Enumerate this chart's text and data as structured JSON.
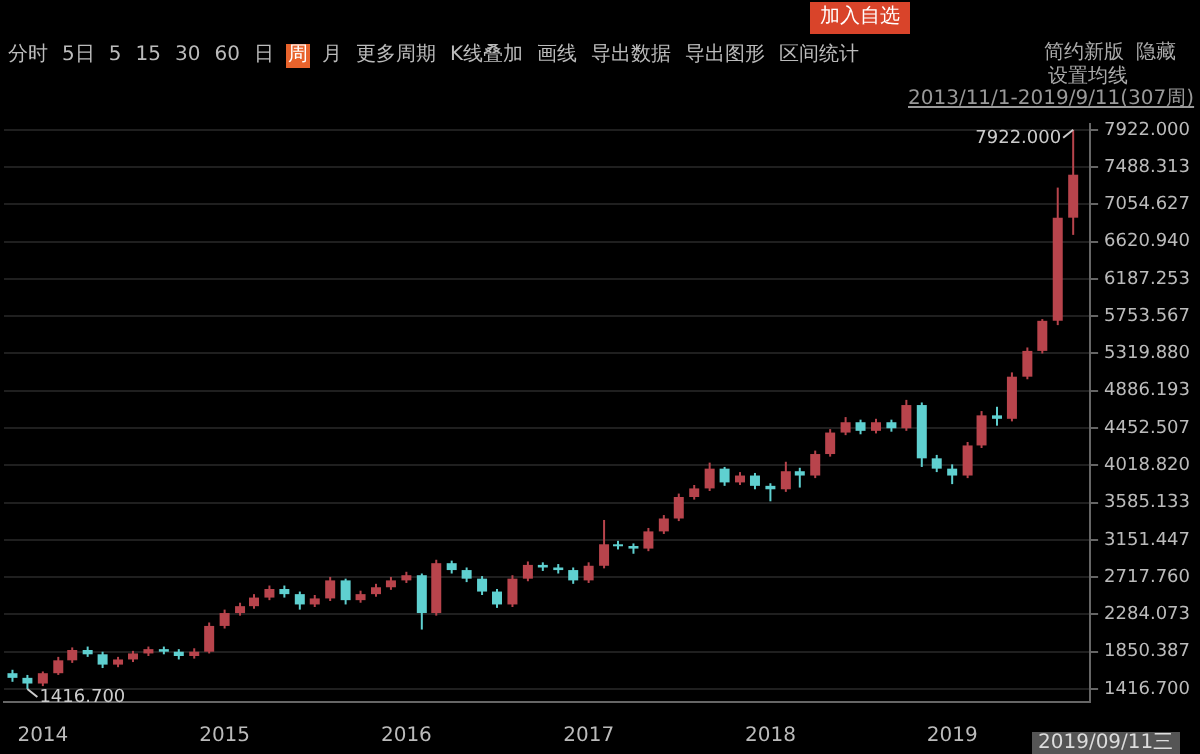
{
  "chart_data": {
    "type": "candlestick",
    "x": [
      "2013-11",
      "2013-12",
      "2014-01",
      "2014-02",
      "2014-03",
      "2014-04",
      "2014-05",
      "2014-06",
      "2014-07",
      "2014-08",
      "2014-09",
      "2014-10",
      "2014-11",
      "2014-12",
      "2015-01",
      "2015-02",
      "2015-03",
      "2015-04",
      "2015-05",
      "2015-06",
      "2015-07",
      "2015-08",
      "2015-09",
      "2015-10",
      "2015-11",
      "2015-12",
      "2016-01",
      "2016-02",
      "2016-03",
      "2016-04",
      "2016-05",
      "2016-06",
      "2016-07",
      "2016-08",
      "2016-09",
      "2016-10",
      "2016-11",
      "2016-12",
      "2017-01",
      "2017-02",
      "2017-03",
      "2017-04",
      "2017-05",
      "2017-06",
      "2017-07",
      "2017-08",
      "2017-09",
      "2017-10",
      "2017-11",
      "2017-12",
      "2018-01",
      "2018-02",
      "2018-03",
      "2018-04",
      "2018-05",
      "2018-06",
      "2018-07",
      "2018-08",
      "2018-09",
      "2018-10",
      "2018-11",
      "2018-12",
      "2019-01",
      "2019-02",
      "2019-03",
      "2019-04",
      "2019-05",
      "2019-06",
      "2019-07",
      "2019-08",
      "2019-09"
    ],
    "ohlc": [
      [
        1600,
        1640,
        1500,
        1546
      ],
      [
        1546,
        1580,
        1416.7,
        1480
      ],
      [
        1480,
        1620,
        1450,
        1600
      ],
      [
        1600,
        1790,
        1580,
        1750
      ],
      [
        1750,
        1900,
        1720,
        1870
      ],
      [
        1870,
        1910,
        1790,
        1820
      ],
      [
        1820,
        1850,
        1660,
        1700
      ],
      [
        1700,
        1790,
        1670,
        1760
      ],
      [
        1760,
        1860,
        1730,
        1830
      ],
      [
        1830,
        1910,
        1800,
        1880
      ],
      [
        1880,
        1910,
        1820,
        1850
      ],
      [
        1850,
        1880,
        1760,
        1800
      ],
      [
        1800,
        1890,
        1770,
        1850
      ],
      [
        1850,
        2190,
        1830,
        2150
      ],
      [
        2150,
        2340,
        2120,
        2300
      ],
      [
        2300,
        2420,
        2270,
        2380
      ],
      [
        2380,
        2520,
        2350,
        2480
      ],
      [
        2480,
        2620,
        2450,
        2580
      ],
      [
        2580,
        2620,
        2480,
        2520
      ],
      [
        2520,
        2550,
        2340,
        2400
      ],
      [
        2400,
        2510,
        2370,
        2470
      ],
      [
        2470,
        2720,
        2440,
        2680
      ],
      [
        2680,
        2700,
        2400,
        2450
      ],
      [
        2450,
        2560,
        2420,
        2520
      ],
      [
        2520,
        2640,
        2490,
        2600
      ],
      [
        2600,
        2720,
        2570,
        2680
      ],
      [
        2680,
        2780,
        2650,
        2740
      ],
      [
        2740,
        2760,
        2108,
        2300
      ],
      [
        2300,
        2920,
        2270,
        2880
      ],
      [
        2880,
        2910,
        2760,
        2800
      ],
      [
        2800,
        2830,
        2660,
        2700
      ],
      [
        2700,
        2730,
        2510,
        2550
      ],
      [
        2550,
        2580,
        2360,
        2400
      ],
      [
        2400,
        2740,
        2370,
        2700
      ],
      [
        2700,
        2900,
        2670,
        2860
      ],
      [
        2860,
        2890,
        2790,
        2830
      ],
      [
        2830,
        2870,
        2760,
        2800
      ],
      [
        2800,
        2830,
        2640,
        2680
      ],
      [
        2680,
        2890,
        2650,
        2850
      ],
      [
        2850,
        3383,
        2820,
        3100
      ],
      [
        3100,
        3140,
        3040,
        3080
      ],
      [
        3080,
        3110,
        2990,
        3050
      ],
      [
        3050,
        3290,
        3020,
        3250
      ],
      [
        3250,
        3440,
        3220,
        3400
      ],
      [
        3400,
        3690,
        3370,
        3650
      ],
      [
        3650,
        3790,
        3620,
        3750
      ],
      [
        3750,
        4050,
        3720,
        3980
      ],
      [
        3980,
        4000,
        3780,
        3820
      ],
      [
        3820,
        3940,
        3790,
        3900
      ],
      [
        3900,
        3930,
        3740,
        3780
      ],
      [
        3780,
        3810,
        3600,
        3740
      ],
      [
        3740,
        4060,
        3710,
        3950
      ],
      [
        3950,
        3990,
        3760,
        3900
      ],
      [
        3900,
        4190,
        3870,
        4150
      ],
      [
        4150,
        4440,
        4120,
        4400
      ],
      [
        4400,
        4580,
        4370,
        4520
      ],
      [
        4520,
        4550,
        4380,
        4420
      ],
      [
        4420,
        4560,
        4390,
        4520
      ],
      [
        4520,
        4550,
        4410,
        4450
      ],
      [
        4450,
        4780,
        4420,
        4720
      ],
      [
        4720,
        4750,
        4000,
        4100
      ],
      [
        4100,
        4140,
        3940,
        3980
      ],
      [
        3980,
        4030,
        3800,
        3900
      ],
      [
        3900,
        4290,
        3870,
        4250
      ],
      [
        4250,
        4650,
        4220,
        4600
      ],
      [
        4600,
        4700,
        4480,
        4560
      ],
      [
        4560,
        5100,
        4530,
        5050
      ],
      [
        5050,
        5390,
        5020,
        5350
      ],
      [
        5350,
        5720,
        5320,
        5700
      ],
      [
        5700,
        7250,
        5650,
        6900
      ],
      [
        6900,
        7922,
        6700,
        7400
      ]
    ],
    "colors": [
      "#5fd0d0",
      "#5fd0d0",
      "#b8444c",
      "#b8444c",
      "#b8444c",
      "#5fd0d0",
      "#5fd0d0",
      "#b8444c",
      "#b8444c",
      "#b8444c",
      "#5fd0d0",
      "#5fd0d0",
      "#b8444c",
      "#b8444c",
      "#b8444c",
      "#b8444c",
      "#b8444c",
      "#b8444c",
      "#5fd0d0",
      "#5fd0d0",
      "#b8444c",
      "#b8444c",
      "#5fd0d0",
      "#b8444c",
      "#b8444c",
      "#b8444c",
      "#b8444c",
      "#5fd0d0",
      "#b8444c",
      "#5fd0d0",
      "#5fd0d0",
      "#5fd0d0",
      "#5fd0d0",
      "#b8444c",
      "#b8444c",
      "#5fd0d0",
      "#5fd0d0",
      "#5fd0d0",
      "#b8444c",
      "#b8444c",
      "#5fd0d0",
      "#5fd0d0",
      "#b8444c",
      "#b8444c",
      "#b8444c",
      "#b8444c",
      "#b8444c",
      "#5fd0d0",
      "#b8444c",
      "#5fd0d0",
      "#5fd0d0",
      "#b8444c",
      "#5fd0d0",
      "#b8444c",
      "#b8444c",
      "#b8444c",
      "#5fd0d0",
      "#b8444c",
      "#5fd0d0",
      "#b8444c",
      "#5fd0d0",
      "#5fd0d0",
      "#5fd0d0",
      "#b8444c",
      "#b8444c",
      "#5fd0d0",
      "#b8444c",
      "#b8444c",
      "#b8444c",
      "#b8444c",
      "#b8444c"
    ],
    "xlim": [
      "2013-10-15",
      "2019-10-05"
    ],
    "xticks": [
      "2014",
      "2015",
      "2016",
      "2017",
      "2018",
      "2019"
    ],
    "ylim": [
      1265,
      7990
    ],
    "yticks": [
      {
        "value": 1416.7,
        "label": "1416.700"
      },
      {
        "value": 1850.387,
        "label": "1850.387"
      },
      {
        "value": 2284.073,
        "label": "2284.073"
      },
      {
        "value": 2717.76,
        "label": "2717.760"
      },
      {
        "value": 3151.447,
        "label": "3151.447"
      },
      {
        "value": 3585.133,
        "label": "3585.133"
      },
      {
        "value": 4018.82,
        "label": "4018.820"
      },
      {
        "value": 4452.507,
        "label": "4452.507"
      },
      {
        "value": 4886.193,
        "label": "4886.193"
      },
      {
        "value": 5319.88,
        "label": "5319.880"
      },
      {
        "value": 5753.567,
        "label": "5753.567"
      },
      {
        "value": 6187.253,
        "label": "6187.253"
      },
      {
        "value": 6620.94,
        "label": "6620.940"
      },
      {
        "value": 7054.627,
        "label": "7054.627"
      },
      {
        "value": 7488.313,
        "label": "7488.313"
      },
      {
        "value": 7922,
        "label": "7922.000"
      }
    ],
    "grid": "y",
    "annotations": [
      "分时",
      "5日",
      "5",
      "15",
      "30",
      "60",
      "日",
      "周",
      "月",
      "更多周期",
      "K线叠加",
      "画线",
      "导出数据",
      "导出图形",
      "区间统计",
      "简约新版",
      "隐藏",
      "加入自选",
      "设置均线",
      "2013/11/1-2019/9/11(307周)",
      "2019/09/11三",
      {
        "text": "7922.000",
        "x": "2019-09",
        "y": 7922
      },
      {
        "text": "1416.700",
        "x": "2013-12",
        "y": 1416.7
      }
    ]
  }
}
